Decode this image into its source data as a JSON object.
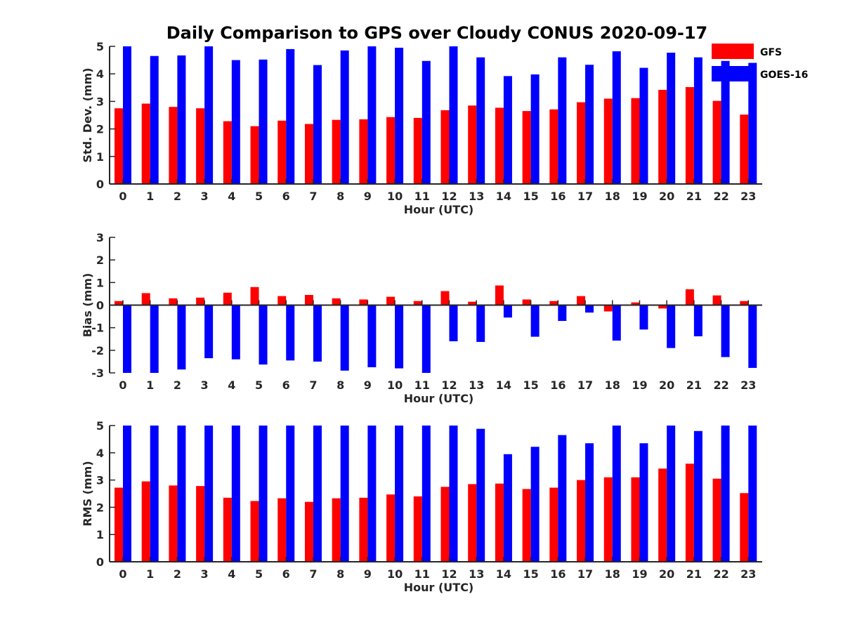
{
  "chart_data": {
    "type": "bar",
    "title": "Daily Comparison to GPS over Cloudy CONUS 2020-09-17",
    "legend": {
      "position": "top-right",
      "entries": [
        "GFS",
        "GOES-16"
      ]
    },
    "colors": {
      "GFS": "#ff0000",
      "GOES-16": "#0000ff"
    },
    "categories": [
      "0",
      "1",
      "2",
      "3",
      "4",
      "5",
      "6",
      "7",
      "8",
      "9",
      "10",
      "11",
      "12",
      "13",
      "14",
      "15",
      "16",
      "17",
      "18",
      "19",
      "20",
      "21",
      "22",
      "23"
    ],
    "panels": [
      {
        "ylabel": "Std. Dev. (mm)",
        "xlabel": "Hour (UTC)",
        "ylim": [
          0,
          5
        ],
        "yticks": [
          "0",
          "1",
          "2",
          "3",
          "4",
          "5"
        ],
        "series": [
          {
            "name": "GFS",
            "values": [
              2.75,
              2.92,
              2.8,
              2.75,
              2.28,
              2.1,
              2.3,
              2.18,
              2.33,
              2.35,
              2.43,
              2.4,
              2.68,
              2.85,
              2.77,
              2.65,
              2.71,
              2.97,
              3.1,
              3.12,
              3.42,
              3.52,
              3.02,
              2.52
            ]
          },
          {
            "name": "GOES-16",
            "values": [
              5.0,
              4.65,
              4.67,
              5.0,
              4.5,
              4.52,
              4.9,
              4.32,
              4.85,
              5.0,
              4.95,
              4.47,
              5.0,
              4.6,
              3.92,
              3.98,
              4.6,
              4.33,
              4.82,
              4.22,
              4.77,
              4.6,
              4.47,
              4.4
            ]
          }
        ]
      },
      {
        "ylabel": "Bias (mm)",
        "xlabel": "Hour (UTC)",
        "ylim": [
          -3,
          3
        ],
        "yticks": [
          "-3",
          "-2",
          "-1",
          "0",
          "1",
          "2",
          "3"
        ],
        "series": [
          {
            "name": "GFS",
            "values": [
              0.18,
              0.53,
              0.3,
              0.33,
              0.55,
              0.8,
              0.4,
              0.45,
              0.3,
              0.25,
              0.37,
              0.18,
              0.62,
              0.15,
              0.87,
              0.25,
              0.18,
              0.4,
              -0.28,
              0.12,
              -0.15,
              0.7,
              0.43,
              0.18
            ]
          },
          {
            "name": "GOES-16",
            "values": [
              -3.0,
              -3.0,
              -2.85,
              -2.35,
              -2.4,
              -2.63,
              -2.45,
              -2.5,
              -2.9,
              -2.75,
              -2.8,
              -3.0,
              -1.6,
              -1.63,
              -0.55,
              -1.4,
              -0.7,
              -0.33,
              -1.57,
              -1.08,
              -1.9,
              -1.38,
              -2.3,
              -2.78
            ]
          }
        ]
      },
      {
        "ylabel": "RMS (mm)",
        "xlabel": "Hour (UTC)",
        "ylim": [
          0,
          5
        ],
        "yticks": [
          "0",
          "1",
          "2",
          "3",
          "4",
          "5"
        ],
        "series": [
          {
            "name": "GFS",
            "values": [
              2.72,
              2.95,
              2.8,
              2.78,
              2.35,
              2.23,
              2.33,
              2.2,
              2.33,
              2.35,
              2.47,
              2.4,
              2.75,
              2.85,
              2.87,
              2.67,
              2.72,
              3.0,
              3.1,
              3.1,
              3.42,
              3.6,
              3.05,
              2.52
            ]
          },
          {
            "name": "GOES-16",
            "values": [
              5.0,
              5.0,
              5.0,
              5.0,
              5.0,
              5.0,
              5.0,
              5.0,
              5.0,
              5.0,
              5.0,
              5.0,
              5.0,
              4.88,
              3.95,
              4.22,
              4.65,
              4.35,
              5.0,
              4.35,
              5.0,
              4.8,
              5.0,
              5.0
            ]
          }
        ]
      }
    ]
  }
}
